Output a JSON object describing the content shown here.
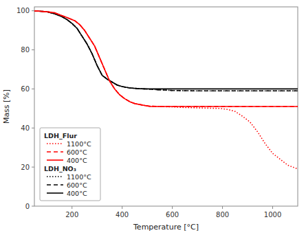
{
  "chart_data": {
    "type": "line",
    "xlabel": "Temperature [°C]",
    "ylabel": "Mass [%]",
    "xlim": [
      50,
      1100
    ],
    "ylim": [
      0,
      102
    ],
    "xticks": [
      200,
      400,
      600,
      800,
      1000
    ],
    "yticks": [
      0,
      20,
      40,
      60,
      80,
      100
    ],
    "legend": "lower left",
    "series": [
      {
        "name": "1100°C",
        "group": "LDH_NO₃",
        "color": "#000000",
        "line_style": "dotted",
        "x": [
          50,
          100,
          130,
          160,
          180,
          200,
          220,
          240,
          260,
          280,
          300,
          320,
          340,
          360,
          380,
          400,
          430,
          460,
          490,
          520,
          550,
          600,
          700,
          800,
          900,
          1000,
          1100
        ],
        "values": [
          100,
          99.5,
          98.5,
          97,
          95.5,
          93.5,
          91,
          87,
          83,
          78,
          72,
          67,
          65,
          63.5,
          62,
          61.2,
          60.5,
          60.2,
          60,
          59.8,
          59.5,
          59.2,
          59,
          59,
          59,
          59,
          59
        ]
      },
      {
        "name": "600°C",
        "group": "LDH_NO₃",
        "color": "#000000",
        "line_style": "dashed",
        "x": [
          50,
          100,
          130,
          160,
          180,
          200,
          220,
          240,
          260,
          280,
          300,
          320,
          340,
          360,
          380,
          400,
          430,
          460,
          490,
          520,
          550,
          600,
          700,
          800,
          900,
          1000,
          1100
        ],
        "values": [
          100,
          99.5,
          98.5,
          97,
          95.5,
          93.5,
          91,
          87,
          83,
          78,
          72,
          67,
          65,
          63.5,
          62,
          61.2,
          60.5,
          60.2,
          60,
          59.8,
          59.5,
          59.2,
          59,
          59,
          59,
          59,
          59
        ]
      },
      {
        "name": "400°C",
        "group": "LDH_NO₃",
        "color": "#000000",
        "line_style": "solid",
        "x": [
          50,
          100,
          130,
          160,
          180,
          200,
          220,
          240,
          260,
          280,
          300,
          320,
          340,
          360,
          380,
          400,
          430,
          460,
          490,
          520,
          550,
          600,
          700,
          800,
          900,
          1000,
          1100
        ],
        "values": [
          100,
          99.5,
          98.5,
          97,
          95.5,
          93.5,
          91,
          87,
          83,
          78,
          72,
          67,
          65,
          63.5,
          62,
          61.2,
          60.5,
          60.2,
          60,
          60,
          60,
          60,
          60,
          60,
          60,
          60,
          60
        ]
      },
      {
        "name": "1100°C",
        "group": "LDH_Flur",
        "color": "#FF0000",
        "line_style": "dotted",
        "x": [
          50,
          100,
          130,
          160,
          190,
          210,
          230,
          250,
          270,
          290,
          310,
          330,
          350,
          370,
          390,
          410,
          430,
          450,
          470,
          490,
          510,
          550,
          600,
          650,
          700,
          730,
          760,
          790,
          820,
          850,
          880,
          910,
          940,
          970,
          1000,
          1030,
          1060,
          1090,
          1100
        ],
        "values": [
          100,
          99.5,
          99,
          97.5,
          96,
          95,
          93,
          90,
          86,
          82,
          76,
          70,
          64,
          60,
          57,
          55,
          53.5,
          52.5,
          52,
          51.5,
          51.2,
          51,
          50.8,
          50.5,
          50.3,
          50.2,
          50.1,
          50,
          49.5,
          48.5,
          46,
          43,
          38,
          32,
          27,
          24,
          21,
          19.5,
          19
        ]
      },
      {
        "name": "600°C",
        "group": "LDH_Flur",
        "color": "#FF0000",
        "line_style": "dashed",
        "x": [
          50,
          100,
          130,
          160,
          190,
          210,
          230,
          250,
          270,
          290,
          310,
          330,
          350,
          370,
          390,
          410,
          430,
          450,
          470,
          490,
          510,
          550,
          600,
          700,
          800,
          900,
          1000,
          1100
        ],
        "values": [
          100,
          99.5,
          99,
          97.5,
          96,
          95,
          93,
          90,
          86,
          82,
          76,
          70,
          64,
          60,
          57,
          55,
          53.5,
          52.5,
          52,
          51.5,
          51.2,
          51,
          51,
          51,
          51,
          51,
          51,
          51
        ]
      },
      {
        "name": "400°C",
        "group": "LDH_Flur",
        "color": "#FF0000",
        "line_style": "solid",
        "x": [
          50,
          100,
          130,
          160,
          190,
          210,
          230,
          250,
          270,
          290,
          310,
          330,
          350,
          370,
          390,
          410,
          430,
          450,
          470,
          490,
          510,
          550,
          600,
          700,
          800,
          900,
          1000,
          1100
        ],
        "values": [
          100,
          99.5,
          99,
          97.5,
          96,
          95,
          93,
          90,
          86,
          82,
          76,
          70,
          64,
          60,
          57,
          55,
          53.5,
          52.5,
          52,
          51.5,
          51,
          51,
          51,
          51,
          51,
          51,
          51,
          51
        ]
      }
    ]
  }
}
